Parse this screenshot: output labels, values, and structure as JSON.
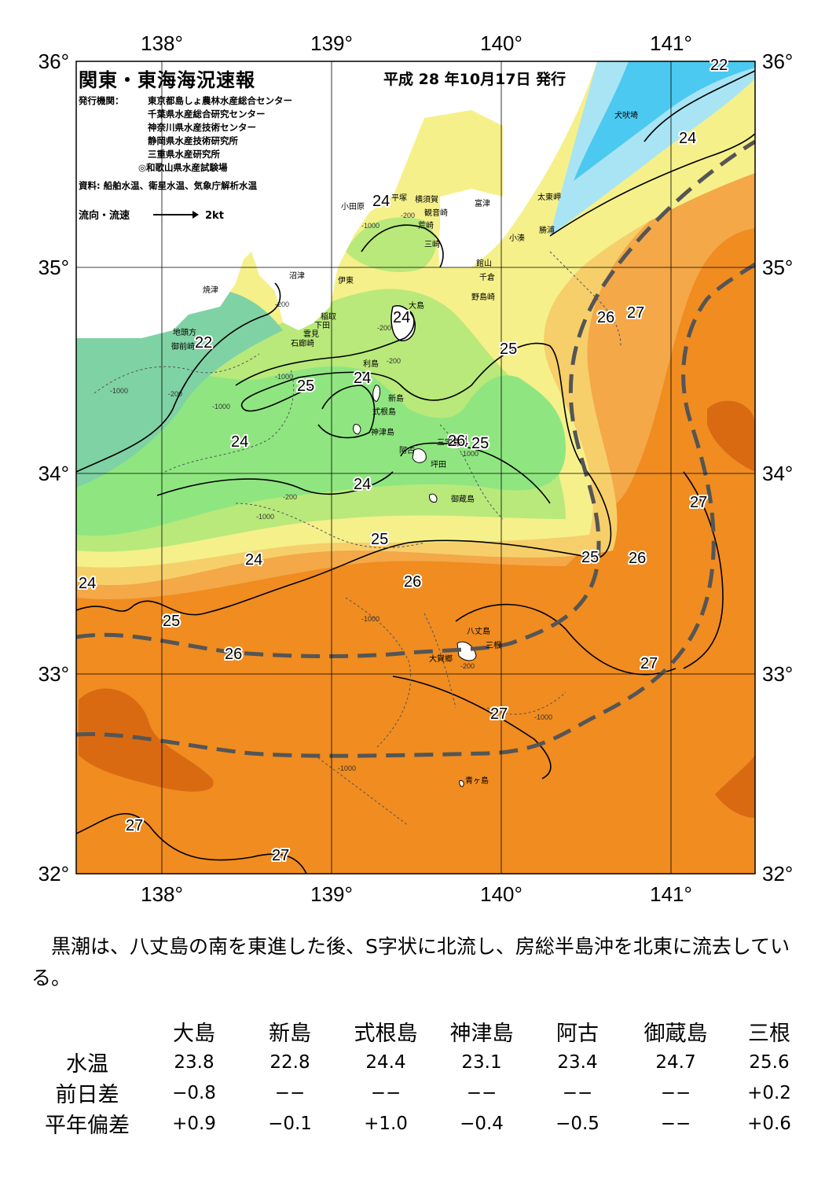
{
  "header": {
    "title": "関東・東海海況速報",
    "date": "平成 28 年10月17日 発行",
    "agencies_label": "発行機関：",
    "agencies": [
      "東京都島しょ農林水産総合センター",
      "千葉県水産総合研究センター",
      "神奈川県水産技術センター",
      "静岡県水産技術研究所",
      "三重県水産研究所",
      "◎和歌山県水産試験場"
    ],
    "source": "資料: 船舶水温、衛星水温、気象庁解析水温",
    "flow_label": "流向・流速",
    "flow_scale": "2kt"
  },
  "axes": {
    "lon_labels": [
      "138°",
      "139°",
      "140°",
      "141°"
    ],
    "lat_labels": [
      "36°",
      "35°",
      "34°",
      "33°",
      "32°"
    ]
  },
  "map_colors": {
    "cyan": "#4cc9f0",
    "light_cyan": "#a8e4f4",
    "teal_green": "#7fd2a4",
    "green": "#8fe680",
    "light_green": "#b9e97a",
    "yellow": "#f5f08a",
    "light_orange": "#f6cf6a",
    "orange": "#f4a848",
    "deep_orange": "#f08c20",
    "dark_orange": "#d96a12",
    "land": "#ffffff",
    "kuroshio_path": "#555555"
  },
  "isotherm_labels": [
    "22",
    "24",
    "24",
    "22",
    "25",
    "24",
    "24",
    "24",
    "24",
    "25",
    "26",
    "27",
    "25",
    "26",
    "24",
    "25",
    "26",
    "27",
    "27",
    "27",
    "27",
    "27",
    "24",
    "25",
    "26",
    "26",
    "24",
    "25"
  ],
  "depth_labels": [
    "-200",
    "-1000",
    "-200",
    "-1000",
    "-200",
    "-1000",
    "-200",
    "-1000",
    "-200",
    "-200",
    "-1000",
    "-1000",
    "-1000",
    "-200",
    "-1000",
    "-1000"
  ],
  "place_names": [
    "犬吠埼",
    "太東岬",
    "勝浦",
    "小湊",
    "館山",
    "千倉",
    "野島崎",
    "富津",
    "横須賀",
    "観音崎",
    "荒崎",
    "三崎",
    "平塚",
    "小田原",
    "伊東",
    "稲取",
    "下田",
    "雲見",
    "石廊崎",
    "沼津",
    "焼津",
    "地頭方",
    "御前崎",
    "大島",
    "利島",
    "新島",
    "式根島",
    "神津島",
    "三宅島",
    "阿古",
    "坪田",
    "御蔵島",
    "八丈島",
    "三根",
    "大賀郷",
    "青ヶ島"
  ],
  "summary": "黒潮は、八丈島の南を東進した後、S字状に北流し、房総半島沖を北東に流去している。",
  "table": {
    "stations": [
      "大島",
      "新島",
      "式根島",
      "神津島",
      "阿古",
      "御蔵島",
      "三根"
    ],
    "rows": [
      {
        "label": "水温",
        "values": [
          "23.8",
          "22.8",
          "24.4",
          "23.1",
          "23.4",
          "24.7",
          "25.6"
        ]
      },
      {
        "label": "前日差",
        "values": [
          "−0.8",
          "−−",
          "−−",
          "−−",
          "−−",
          "−−",
          "+0.2"
        ]
      },
      {
        "label": "平年偏差",
        "values": [
          "+0.9",
          "−0.1",
          "+1.0",
          "−0.4",
          "−0.5",
          "−−",
          "+0.6"
        ]
      }
    ]
  }
}
